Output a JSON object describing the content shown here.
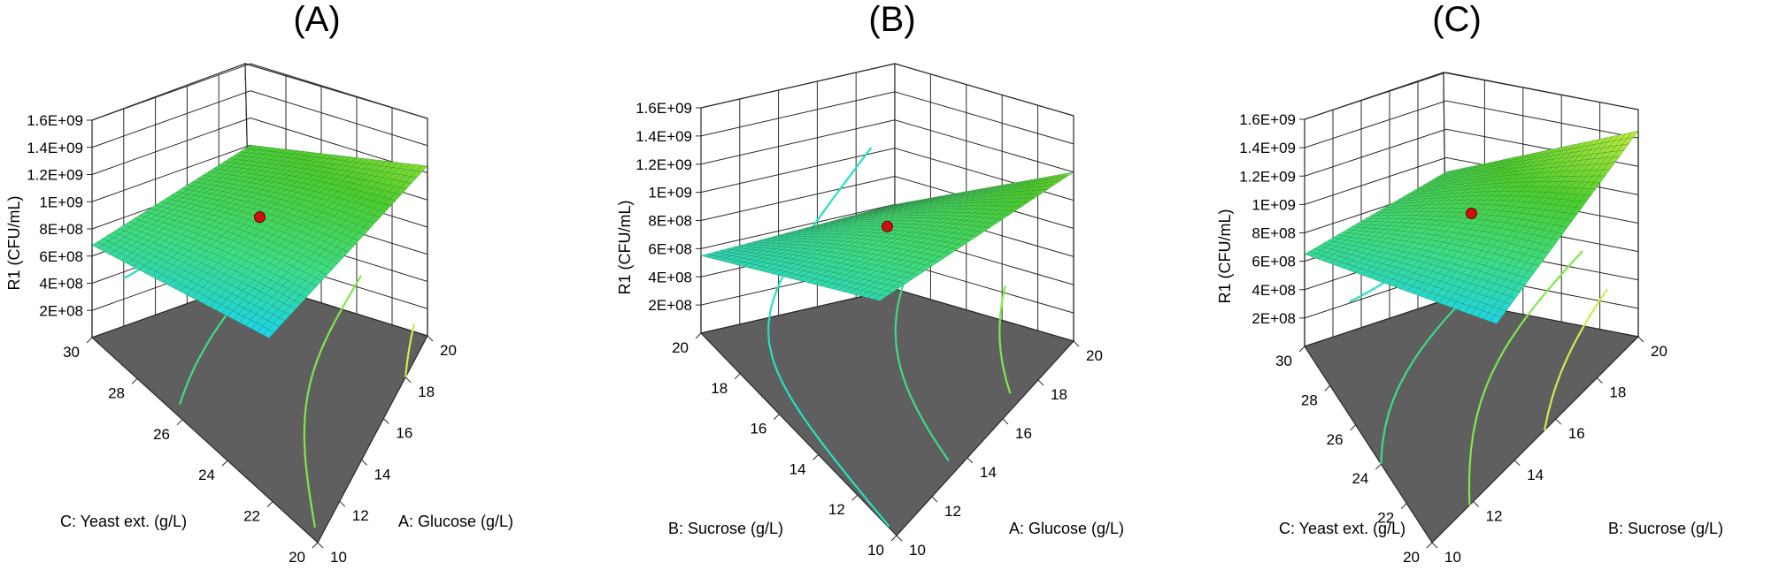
{
  "figure": {
    "panels": [
      {
        "id": "A",
        "title": "(A)"
      },
      {
        "id": "B",
        "title": "(B)"
      },
      {
        "id": "C",
        "title": "(C)"
      }
    ]
  },
  "chart_data": [
    {
      "type": "surface",
      "title": "(A)",
      "xlabel": "A: Glucose (g/L)",
      "ylabel": "C: Yeast ext. (g/L)",
      "zlabel": "R1 (CFU/mL)",
      "x_ticks": [
        "10",
        "12",
        "14",
        "16",
        "18",
        "20"
      ],
      "y_ticks": [
        "20",
        "22",
        "24",
        "26",
        "28",
        "30"
      ],
      "z_ticks": [
        "2E+08",
        "4E+08",
        "6E+08",
        "8E+08",
        "1E+09",
        "1.2E+09",
        "1.4E+09",
        "1.6E+09"
      ],
      "xlim": [
        10,
        20
      ],
      "ylim": [
        20,
        30
      ],
      "zlim": [
        0,
        1600000000
      ],
      "corner_values": {
        "x_min_y_min": 1000000000,
        "x_max_y_min": 1250000000,
        "x_min_y_max": 680000000,
        "x_max_y_max": 400000000
      },
      "center_point": {
        "x": 15,
        "y": 25,
        "z": 880000000
      },
      "surface_colors": [
        "#1ad3f0",
        "#3ddc84",
        "#4ccd2c",
        "#b8e83a"
      ]
    },
    {
      "type": "surface",
      "title": "(B)",
      "xlabel": "A: Glucose (g/L)",
      "ylabel": "B: Sucrose (g/L)",
      "zlabel": "R1 (CFU/mL)",
      "x_ticks": [
        "10",
        "12",
        "14",
        "16",
        "18",
        "20"
      ],
      "y_ticks": [
        "10",
        "12",
        "14",
        "16",
        "18",
        "20"
      ],
      "z_ticks": [
        "2E+08",
        "4E+08",
        "6E+08",
        "8E+08",
        "1E+09",
        "1.2E+09",
        "1.4E+09",
        "1.6E+09"
      ],
      "xlim": [
        10,
        20
      ],
      "ylim": [
        10,
        20
      ],
      "zlim": [
        0,
        1600000000
      ],
      "corner_values": {
        "x_min_y_min": 600000000,
        "x_max_y_min": 1200000000,
        "x_min_y_max": 550000000,
        "x_max_y_max": 600000000
      },
      "center_point": {
        "x": 15,
        "y": 15,
        "z": 880000000
      },
      "surface_colors": [
        "#1ad3f0",
        "#3ddc84",
        "#4ccd2c",
        "#b8e83a"
      ]
    },
    {
      "type": "surface",
      "title": "(C)",
      "xlabel": "B: Sucrose (g/L)",
      "ylabel": "C: Yeast ext. (g/L)",
      "zlabel": "R1 (CFU/mL)",
      "x_ticks": [
        "10",
        "12",
        "14",
        "16",
        "18",
        "20"
      ],
      "y_ticks": [
        "20",
        "22",
        "24",
        "26",
        "28",
        "30"
      ],
      "z_ticks": [
        "2E+08",
        "4E+08",
        "6E+08",
        "8E+08",
        "1E+09",
        "1.2E+09",
        "1.4E+09",
        "1.6E+09"
      ],
      "xlim": [
        10,
        20
      ],
      "ylim": [
        20,
        30
      ],
      "zlim": [
        0,
        1600000000
      ],
      "corner_values": {
        "x_min_y_min": 900000000,
        "x_max_y_min": 1450000000,
        "x_min_y_max": 650000000,
        "x_max_y_max": 420000000
      },
      "center_point": {
        "x": 15,
        "y": 25,
        "z": 880000000
      },
      "surface_colors": [
        "#1ad3f0",
        "#3ddc84",
        "#4ccd2c",
        "#b8e83a"
      ]
    }
  ]
}
